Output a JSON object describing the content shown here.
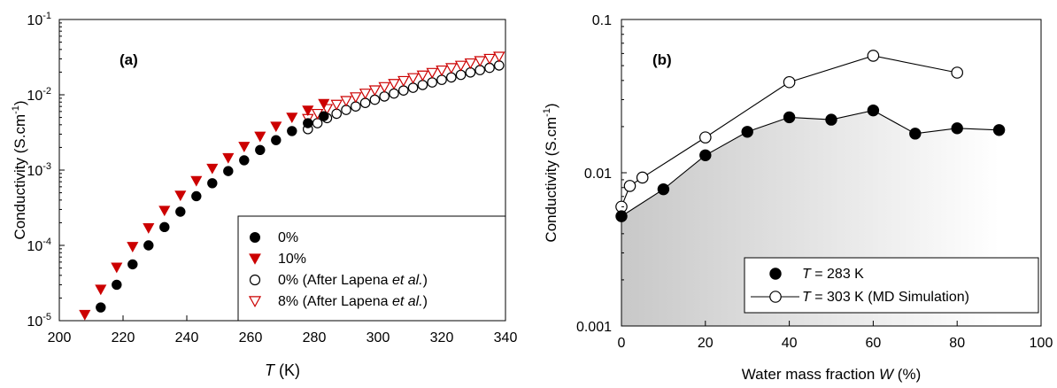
{
  "chart_data": [
    {
      "type": "scatter",
      "panel_label": "(a)",
      "xlabel_italic": "T",
      "xlabel_unit": " (K)",
      "ylabel": "Conductivity (S.cm",
      "ylabel_exp": "-1",
      "ylabel_close": ")",
      "xlim": [
        200,
        340
      ],
      "ylim": [
        1e-05,
        0.1
      ],
      "yscale": "log",
      "x_ticks": [
        200,
        220,
        240,
        260,
        280,
        300,
        320,
        340
      ],
      "y_ticks": [
        {
          "value": 1e-05,
          "base": "10",
          "exp": "-5"
        },
        {
          "value": 0.0001,
          "base": "10",
          "exp": "-4"
        },
        {
          "value": 0.001,
          "base": "10",
          "exp": "-3"
        },
        {
          "value": 0.01,
          "base": "10",
          "exp": "-2"
        },
        {
          "value": 0.1,
          "base": "10",
          "exp": "-1"
        }
      ],
      "legend_position": "bottom-right",
      "series": [
        {
          "name": "0%",
          "marker": "filled-circle",
          "color": "#000000",
          "x": [
            213,
            218,
            223,
            228,
            233,
            238,
            243,
            248,
            253,
            258,
            263,
            268,
            273,
            278,
            283
          ],
          "y": [
            1.5e-05,
            3e-05,
            5.6e-05,
            0.0001,
            0.000175,
            0.00028,
            0.00045,
            0.00067,
            0.00097,
            0.00135,
            0.00185,
            0.0025,
            0.0033,
            0.0042,
            0.0052
          ]
        },
        {
          "name": "10%",
          "marker": "filled-triangle-down",
          "color": "#cc0000",
          "x": [
            208,
            213,
            218,
            223,
            228,
            233,
            238,
            243,
            248,
            253,
            258,
            263,
            268,
            273,
            278,
            283
          ],
          "y": [
            1.2e-05,
            2.6e-05,
            5.1e-05,
            9.6e-05,
            0.00017,
            0.00029,
            0.00046,
            0.00072,
            0.00105,
            0.00145,
            0.00205,
            0.0028,
            0.0038,
            0.005,
            0.0062,
            0.0076
          ]
        },
        {
          "name_main": "0% (After Lapena ",
          "name_ital": "et al.",
          "name_tail": ")",
          "marker": "open-circle",
          "color": "#000000",
          "x": [
            278,
            281,
            284,
            287,
            290,
            293,
            296,
            299,
            302,
            305,
            308,
            311,
            314,
            317,
            320,
            323,
            326,
            329,
            332,
            335,
            338
          ],
          "y": [
            0.0035,
            0.0042,
            0.0049,
            0.0056,
            0.0063,
            0.007,
            0.0078,
            0.0086,
            0.0095,
            0.0104,
            0.0114,
            0.0124,
            0.0135,
            0.0146,
            0.0158,
            0.017,
            0.0184,
            0.0198,
            0.0213,
            0.0228,
            0.0245
          ]
        },
        {
          "name_main": "8% (After Lapena ",
          "name_ital": "et al.",
          "name_tail": ")",
          "marker": "open-triangle-down",
          "color": "#cc0000",
          "x": [
            278,
            281,
            284,
            287,
            290,
            293,
            296,
            299,
            302,
            305,
            308,
            311,
            314,
            317,
            320,
            323,
            326,
            329,
            332,
            335,
            338
          ],
          "y": [
            0.0048,
            0.0056,
            0.0065,
            0.0074,
            0.0083,
            0.0093,
            0.0104,
            0.0115,
            0.0127,
            0.014,
            0.0153,
            0.0167,
            0.0181,
            0.0196,
            0.0211,
            0.0227,
            0.0244,
            0.0262,
            0.0281,
            0.0301,
            0.0322
          ]
        }
      ]
    },
    {
      "type": "line",
      "panel_label": "(b)",
      "xlabel_main": "Water mass fraction ",
      "xlabel_ital": "W",
      "xlabel_tail": " (%)",
      "ylabel": "Conductivity (S.cm",
      "ylabel_exp": "-1",
      "ylabel_close": ")",
      "xlim": [
        0,
        100
      ],
      "ylim": [
        0.001,
        0.1
      ],
      "yscale": "log",
      "x_ticks": [
        "0",
        "20",
        "40",
        "60",
        "80",
        "100"
      ],
      "y_ticks": [
        {
          "value": 0.001,
          "label": "0.001"
        },
        {
          "value": 0.01,
          "label": "0.01"
        },
        {
          "value": 0.1,
          "label": "0.1"
        }
      ],
      "legend_position": "bottom-right",
      "shaded_area": true,
      "series": [
        {
          "name_ital": "T",
          "name_tail": " = 283 K",
          "marker": "filled-circle",
          "color": "#000000",
          "line": true,
          "x": [
            0,
            10,
            20,
            30,
            40,
            50,
            60,
            70,
            80,
            90
          ],
          "y": [
            0.0052,
            0.0078,
            0.013,
            0.0185,
            0.023,
            0.0222,
            0.0255,
            0.018,
            0.0195,
            0.019
          ]
        },
        {
          "name_ital": "T",
          "name_tail": " = 303 K (MD Simulation)",
          "marker": "open-circle",
          "color": "#000000",
          "line": true,
          "x": [
            0,
            2,
            5,
            20,
            40,
            60,
            80
          ],
          "y": [
            0.006,
            0.0082,
            0.0093,
            0.017,
            0.039,
            0.058,
            0.045
          ]
        }
      ]
    }
  ]
}
